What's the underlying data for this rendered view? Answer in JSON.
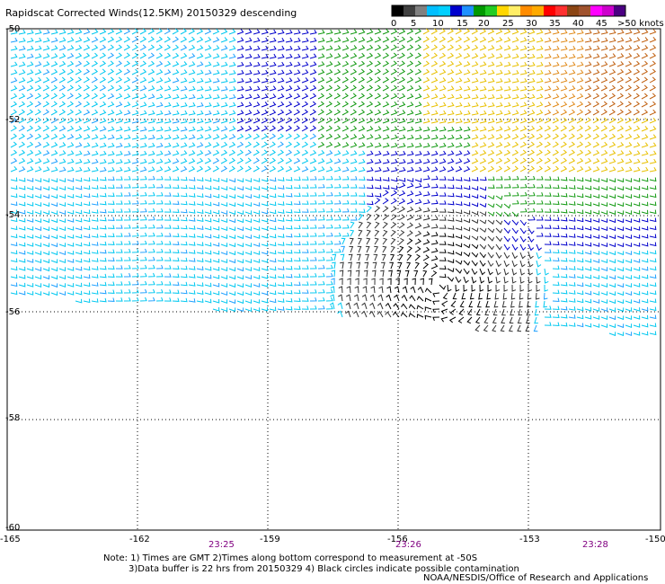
{
  "title": "Rapidscat Corrected Winds(12.5KM) 20150329 descending",
  "legend": {
    "labels": [
      "0",
      "5",
      "10",
      "15",
      "20",
      "25",
      "30",
      "35",
      "40",
      "45"
    ],
    "top_label": ">50 knots",
    "colors": [
      "#000000",
      "#404040",
      "#808080",
      "#00bfff",
      "#00d0ff",
      "#0000cd",
      "#1e90ff",
      "#009900",
      "#22cc22",
      "#ffd700",
      "#ffee66",
      "#ff8c00",
      "#ffaa00",
      "#ff0000",
      "#ff3030",
      "#8b4513",
      "#a0522d",
      "#ff00ff",
      "#cc00cc",
      "#4b0082"
    ]
  },
  "map": {
    "lat_labels": [
      "-50",
      "-52",
      "-54",
      "-56",
      "-58",
      "-60"
    ],
    "lon_labels": [
      "-165",
      "-162",
      "-159",
      "-156",
      "-153",
      "-150"
    ],
    "time_labels": [
      "23:25",
      "23:26",
      "23:28"
    ]
  },
  "notes": {
    "line1": "Note: 1) Times are GMT 2)Times along bottom correspond to measurement at -50S",
    "line2": "3)Data buffer is 22 hrs from 20150329 4) Black circles indicate possible contamination",
    "credit": "NOAA/NESDIS/Office of Research and Applications"
  }
}
